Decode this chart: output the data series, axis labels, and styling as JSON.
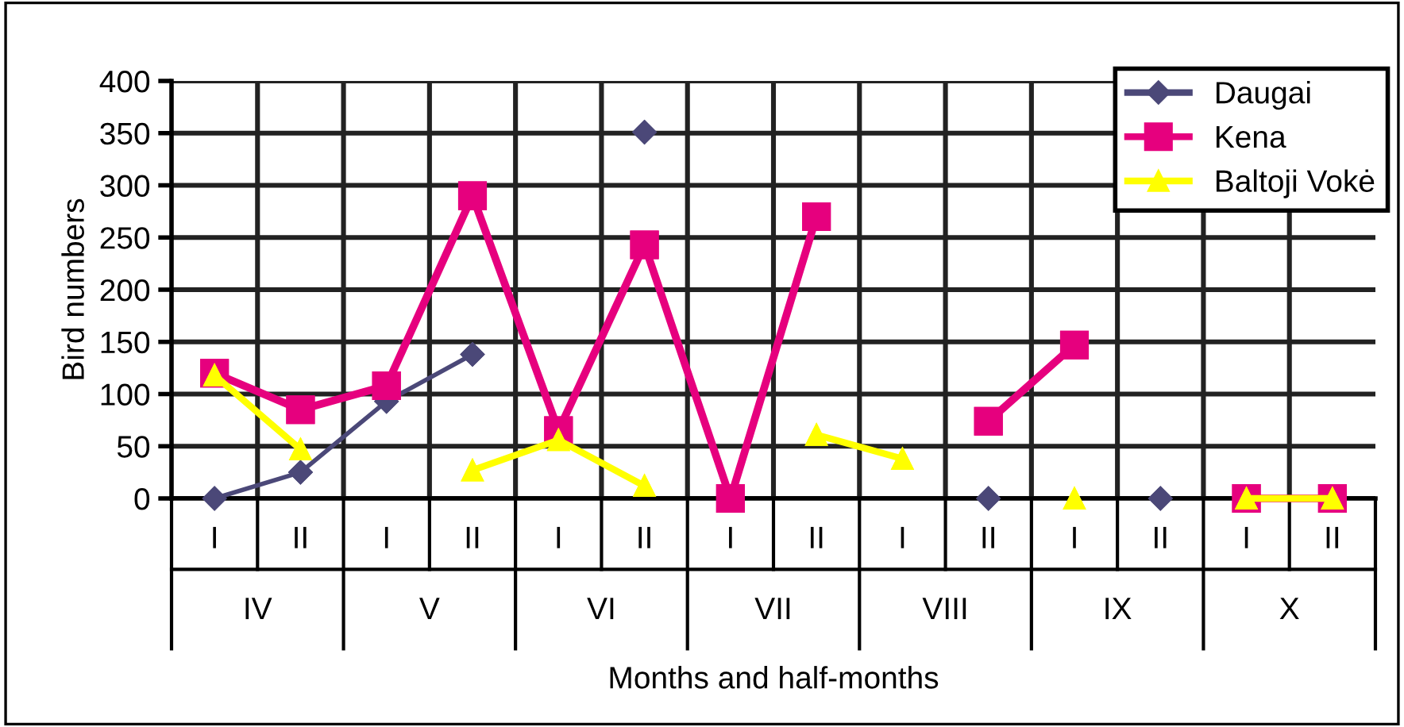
{
  "chart_data": {
    "type": "line",
    "ylabel": "Bird numbers",
    "xlabel": "Months and half-months",
    "categories": [
      "I",
      "II",
      "I",
      "II",
      "I",
      "II",
      "I",
      "II",
      "I",
      "II",
      "I",
      "II",
      "I",
      "II"
    ],
    "annotations": [
      "IV",
      "V",
      "VI",
      "VII",
      "VIII",
      "IX",
      "X"
    ],
    "series": [
      {
        "name": "Daugai",
        "color": "#4b4878",
        "marker": "diamond",
        "values": [
          0,
          25,
          93,
          138,
          null,
          351,
          null,
          null,
          null,
          0,
          null,
          0,
          null,
          null
        ]
      },
      {
        "name": "Kena",
        "color": "#e6007e",
        "marker": "square",
        "values": [
          120,
          85,
          108,
          290,
          65,
          243,
          0,
          270,
          null,
          74,
          147,
          null,
          0,
          0
        ]
      },
      {
        "name": "Baltoji Vokė",
        "color": "#ffff00",
        "marker": "triangle",
        "values": [
          118,
          47,
          null,
          27,
          56,
          12,
          null,
          61,
          38,
          null,
          0,
          null,
          0,
          0
        ]
      }
    ],
    "ylim": [
      0,
      400
    ],
    "yticks": [
      0,
      50,
      100,
      150,
      200,
      250,
      300,
      350,
      400
    ],
    "grid": true,
    "legend": "top right"
  }
}
